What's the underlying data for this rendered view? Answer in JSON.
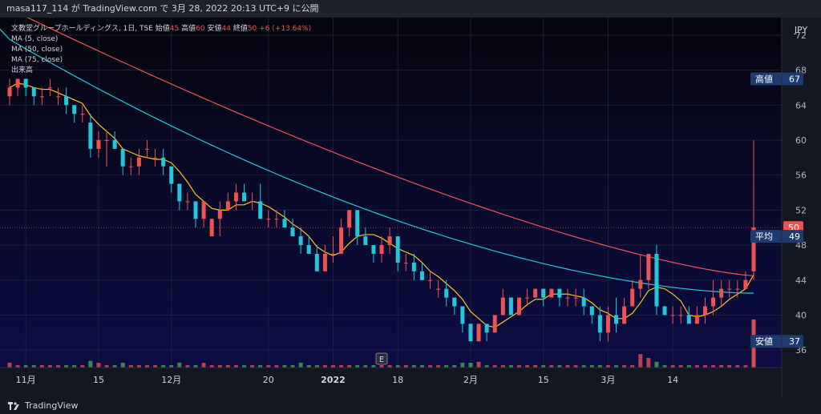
{
  "header": {
    "publish_text": "masa117_114 が TradingView.com で 3月 28, 2022 20:13 UTC+9 に公開"
  },
  "legend": {
    "symbol": "文教堂グループホールディングス, 1日, TSE",
    "ohlc": [
      {
        "label": "始値",
        "value": "45"
      },
      {
        "label": "高値",
        "value": "60"
      },
      {
        "label": "安値",
        "value": "44"
      },
      {
        "label": "終値",
        "value": "50"
      }
    ],
    "change": "+6 (+13.64%)",
    "indicators": [
      "MA (5, close)",
      "MA (50, close)",
      "MA (75, close)",
      "出来高"
    ]
  },
  "footer": {
    "brand": "TradingView"
  },
  "colors": {
    "background_top": "#06060e",
    "background_bottom": "#0c0c44",
    "up": "#ef5350",
    "down": "#26c6da",
    "ma5": "#f5c518",
    "ma50": "#26c6da",
    "ma75": "#ef5350",
    "vol_up": "#ef5350",
    "vol_down": "#4caf50"
  },
  "chart_data": {
    "type": "candlestick",
    "currency": "JPY",
    "y_ticks": [
      36,
      40,
      44,
      48,
      52,
      56,
      60,
      64,
      68,
      72
    ],
    "y_range": [
      34,
      74
    ],
    "x_labels": [
      {
        "text": "11月",
        "index": 2,
        "bold": false
      },
      {
        "text": "15",
        "index": 11,
        "bold": false
      },
      {
        "text": "12月",
        "index": 20,
        "bold": false
      },
      {
        "text": "20",
        "index": 32,
        "bold": false
      },
      {
        "text": "2022",
        "index": 40,
        "bold": true
      },
      {
        "text": "18",
        "index": 48,
        "bold": false
      },
      {
        "text": "2月",
        "index": 57,
        "bold": false
      },
      {
        "text": "15",
        "index": 66,
        "bold": false
      },
      {
        "text": "3月",
        "index": 74,
        "bold": false
      },
      {
        "text": "14",
        "index": 82,
        "bold": false
      }
    ],
    "price_tags": [
      {
        "label": "高値",
        "value": "67",
        "price": 67,
        "color": "#1e3a6e"
      },
      {
        "label": "",
        "value": "50",
        "price": 50,
        "color": "#ef5350"
      },
      {
        "label": "平均",
        "value": "49",
        "price": 49,
        "color": "#1e3a6e"
      },
      {
        "label": "安値",
        "value": "37",
        "price": 37,
        "color": "#1e3a6e"
      }
    ],
    "earnings_marker": {
      "label": "E",
      "index": 46
    },
    "candles": [
      [
        65,
        67,
        64,
        66
      ],
      [
        66,
        67,
        65,
        67
      ],
      [
        67,
        67,
        65,
        66
      ],
      [
        66,
        66,
        64,
        65
      ],
      [
        65,
        66,
        64,
        65
      ],
      [
        66,
        67,
        65,
        66
      ],
      [
        65,
        66,
        64,
        65
      ],
      [
        65,
        66,
        63,
        64
      ],
      [
        64,
        64,
        62,
        63
      ],
      [
        63,
        64,
        62,
        63
      ],
      [
        62,
        63,
        58,
        59
      ],
      [
        59,
        61,
        58,
        60
      ],
      [
        60,
        61,
        57,
        60
      ],
      [
        60,
        61,
        59,
        59
      ],
      [
        59,
        59,
        56,
        57
      ],
      [
        57,
        58,
        56,
        57
      ],
      [
        57,
        59,
        56,
        58
      ],
      [
        59,
        60,
        58,
        59
      ],
      [
        58,
        59,
        57,
        58
      ],
      [
        58,
        59,
        56,
        57
      ],
      [
        57,
        57,
        54,
        55
      ],
      [
        55,
        55,
        52,
        53
      ],
      [
        53,
        54,
        52,
        53
      ],
      [
        53,
        53,
        50,
        51
      ],
      [
        51,
        53,
        50,
        53
      ],
      [
        49,
        51,
        49,
        51
      ],
      [
        51,
        53,
        49,
        52
      ],
      [
        52,
        54,
        52,
        53
      ],
      [
        53,
        55,
        52,
        54
      ],
      [
        54,
        55,
        53,
        53
      ],
      [
        53,
        54,
        52,
        53
      ],
      [
        53,
        55,
        51,
        51
      ],
      [
        51,
        52,
        50,
        51
      ],
      [
        51,
        52,
        50,
        51
      ],
      [
        51,
        52,
        50,
        50
      ],
      [
        50,
        51,
        49,
        49
      ],
      [
        49,
        50,
        47,
        48
      ],
      [
        48,
        49,
        47,
        47
      ],
      [
        47,
        48,
        45,
        45
      ],
      [
        45,
        48,
        45,
        47
      ],
      [
        47,
        49,
        46,
        47
      ],
      [
        47,
        51,
        47,
        50
      ],
      [
        50,
        52,
        49,
        52
      ],
      [
        52,
        52,
        48,
        49
      ],
      [
        49,
        50,
        48,
        48
      ],
      [
        48,
        48,
        46,
        47
      ],
      [
        47,
        49,
        46,
        48
      ],
      [
        48,
        50,
        47,
        49
      ],
      [
        49,
        49,
        45,
        46
      ],
      [
        46,
        47,
        45,
        46
      ],
      [
        46,
        47,
        44,
        45
      ],
      [
        45,
        46,
        44,
        44
      ],
      [
        44,
        45,
        43,
        44
      ],
      [
        43,
        44,
        42,
        43
      ],
      [
        43,
        44,
        41,
        42
      ],
      [
        42,
        42,
        40,
        41
      ],
      [
        41,
        41,
        38,
        39
      ],
      [
        39,
        39,
        37,
        37
      ],
      [
        37,
        39,
        37,
        39
      ],
      [
        39,
        39,
        37,
        38
      ],
      [
        38,
        40,
        38,
        40
      ],
      [
        40,
        43,
        40,
        42
      ],
      [
        42,
        42,
        40,
        40
      ],
      [
        40,
        42,
        40,
        42
      ],
      [
        42,
        43,
        41,
        42
      ],
      [
        42,
        43,
        42,
        43
      ],
      [
        43,
        43,
        41,
        42
      ],
      [
        42,
        43,
        42,
        43
      ],
      [
        43,
        43,
        41,
        42
      ],
      [
        42,
        43,
        41,
        42
      ],
      [
        42,
        43,
        41,
        42
      ],
      [
        42,
        43,
        40,
        41
      ],
      [
        41,
        41,
        39,
        40
      ],
      [
        40,
        41,
        37,
        38
      ],
      [
        38,
        41,
        37,
        40
      ],
      [
        40,
        42,
        38,
        39
      ],
      [
        39,
        42,
        39,
        41
      ],
      [
        41,
        44,
        41,
        43
      ],
      [
        43,
        47,
        42,
        44
      ],
      [
        44,
        47,
        43,
        47
      ],
      [
        47,
        48,
        40,
        41
      ],
      [
        41,
        41,
        40,
        40
      ],
      [
        40,
        41,
        39,
        40
      ],
      [
        40,
        41,
        39,
        40
      ],
      [
        40,
        41,
        39,
        39
      ],
      [
        39,
        41,
        39,
        40
      ],
      [
        40,
        42,
        39,
        41
      ],
      [
        41,
        44,
        40,
        42
      ],
      [
        42,
        44,
        41,
        43
      ],
      [
        43,
        44,
        42,
        43
      ],
      [
        43,
        44,
        42,
        43
      ],
      [
        43,
        45,
        43,
        44
      ],
      [
        45,
        60,
        44,
        50
      ]
    ],
    "volume": [
      0.1,
      0.05,
      0.05,
      0.05,
      0.05,
      0.05,
      0.05,
      0.05,
      0.05,
      0.05,
      0.14,
      0.1,
      0.05,
      0.05,
      0.1,
      0.05,
      0.05,
      0.05,
      0.05,
      0.05,
      0.05,
      0.1,
      0.05,
      0.05,
      0.1,
      0.05,
      0.05,
      0.05,
      0.05,
      0.05,
      0.05,
      0.05,
      0.05,
      0.05,
      0.05,
      0.05,
      0.1,
      0.05,
      0.05,
      0.05,
      0.05,
      0.05,
      0.05,
      0.05,
      0.05,
      0.05,
      0.05,
      0.05,
      0.05,
      0.05,
      0.05,
      0.05,
      0.05,
      0.05,
      0.05,
      0.05,
      0.1,
      0.1,
      0.12,
      0.05,
      0.05,
      0.05,
      0.05,
      0.05,
      0.05,
      0.05,
      0.05,
      0.05,
      0.05,
      0.05,
      0.05,
      0.05,
      0.05,
      0.05,
      0.05,
      0.05,
      0.05,
      0.05,
      0.28,
      0.2,
      0.12,
      0.05,
      0.05,
      0.05,
      0.05,
      0.05,
      0.05,
      0.05,
      0.05,
      0.05,
      0.05,
      0.05,
      1.0
    ]
  }
}
